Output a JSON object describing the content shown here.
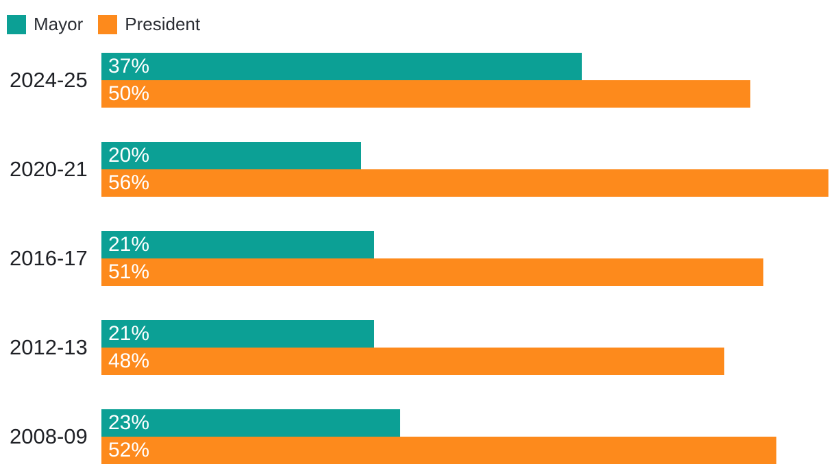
{
  "chart_data": {
    "type": "bar",
    "orientation": "horizontal",
    "title": "",
    "xlabel": "",
    "ylabel": "",
    "categories": [
      "2024-25",
      "2020-21",
      "2016-17",
      "2012-13",
      "2008-09"
    ],
    "series": [
      {
        "name": "Mayor",
        "color": "#0ca095",
        "values": [
          37,
          20,
          21,
          21,
          23
        ]
      },
      {
        "name": "President",
        "color": "#fd8a1c",
        "values": [
          50,
          56,
          51,
          48,
          52
        ]
      }
    ],
    "value_suffix": "%",
    "value_labels": "inside-left-white",
    "xlim": [
      0,
      56.6
    ],
    "grid": false,
    "legend_position": "top-left",
    "colors": {
      "mayor_teal": "#0ca095",
      "president_orange": "#fd8a1c",
      "label_text": "#1f2126",
      "background": "#ffffff"
    }
  }
}
